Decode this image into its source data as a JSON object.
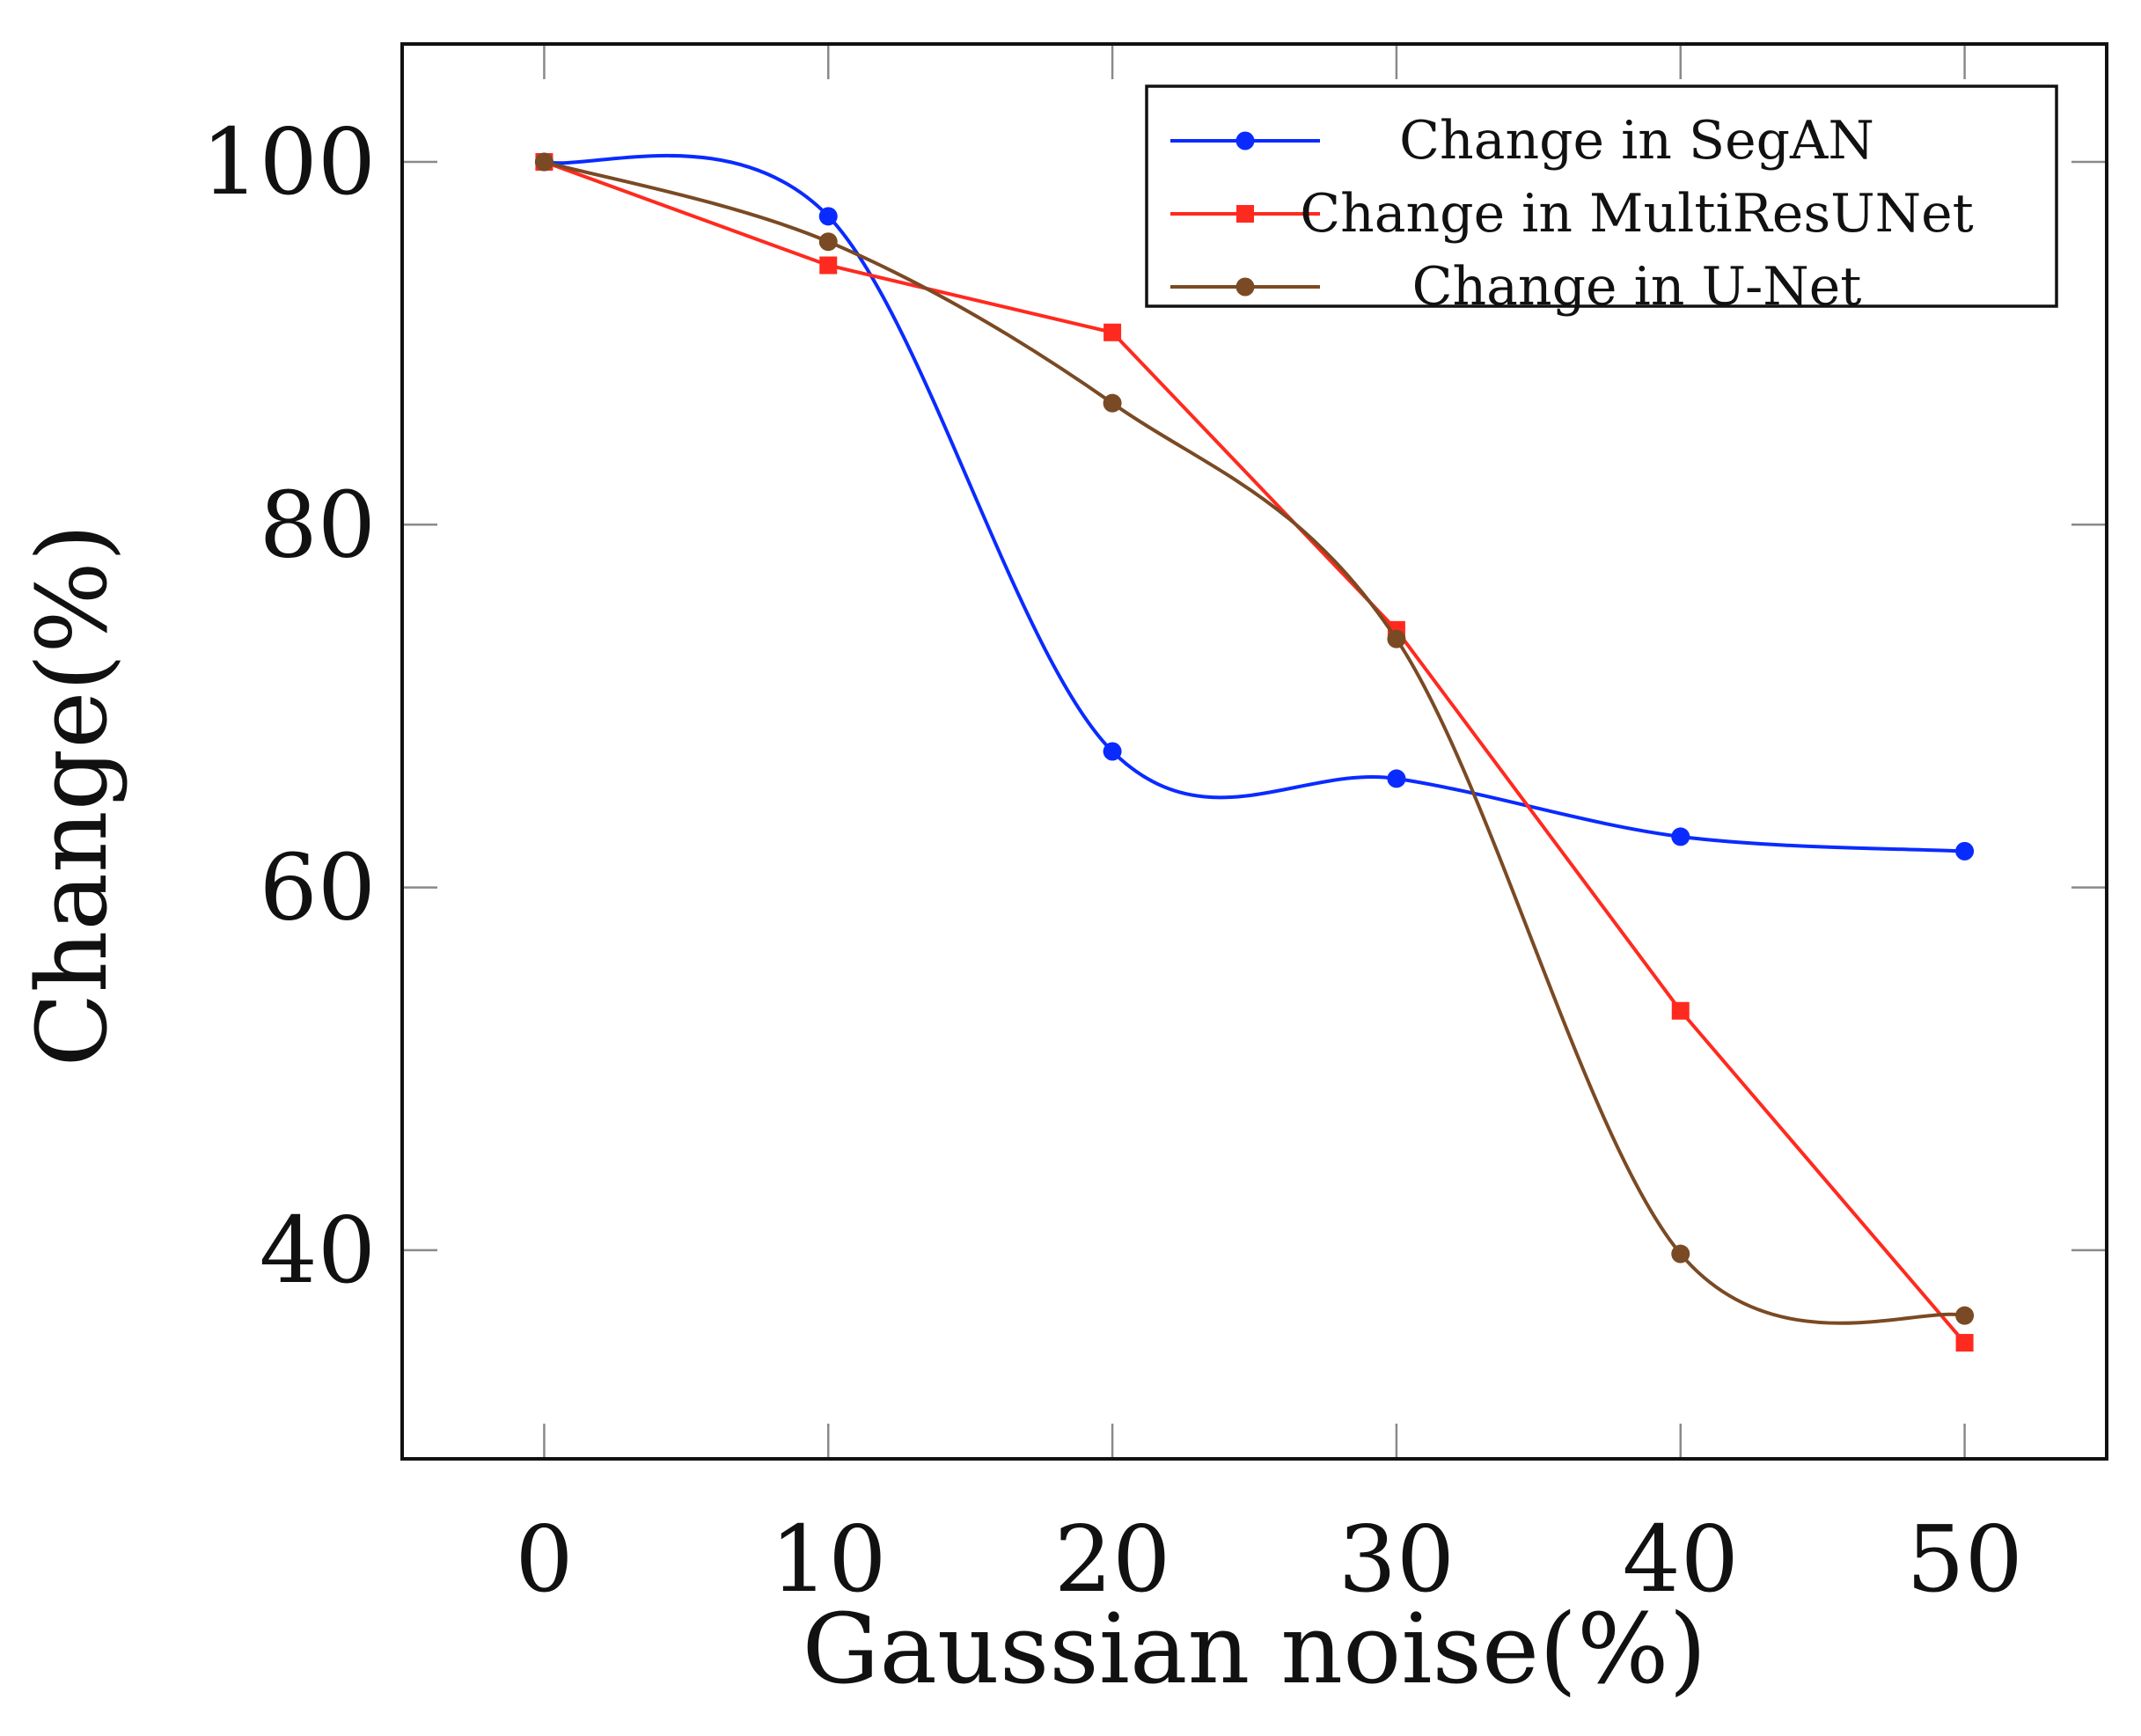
{
  "chart_data": {
    "type": "line",
    "title": "",
    "xlabel": "Gaussian noise(%)",
    "ylabel": "Change(%)",
    "x": [
      0,
      10,
      20,
      30,
      40,
      50
    ],
    "xlim": [
      -5,
      55
    ],
    "ylim": [
      28.5,
      106.5
    ],
    "xticks": [
      "0",
      "10",
      "20",
      "30",
      "40",
      "50"
    ],
    "yticks": [
      "40",
      "60",
      "80",
      "100"
    ],
    "grid": false,
    "legend_position": "top-right",
    "series": [
      {
        "name": "Change in SegAN",
        "color": "#0a2bff",
        "marker": "circle",
        "values": [
          100,
          97,
          67.5,
          66,
          62.8,
          62
        ]
      },
      {
        "name": "Change in MultiResUNet",
        "color": "#ff2a1f",
        "marker": "square",
        "values": [
          100,
          94.3,
          90.6,
          74.2,
          53.2,
          34.9
        ]
      },
      {
        "name": "Change in U-Net",
        "color": "#7a4a24",
        "marker": "circle",
        "values": [
          100,
          95.6,
          86.7,
          73.7,
          39.8,
          36.4
        ]
      }
    ]
  }
}
